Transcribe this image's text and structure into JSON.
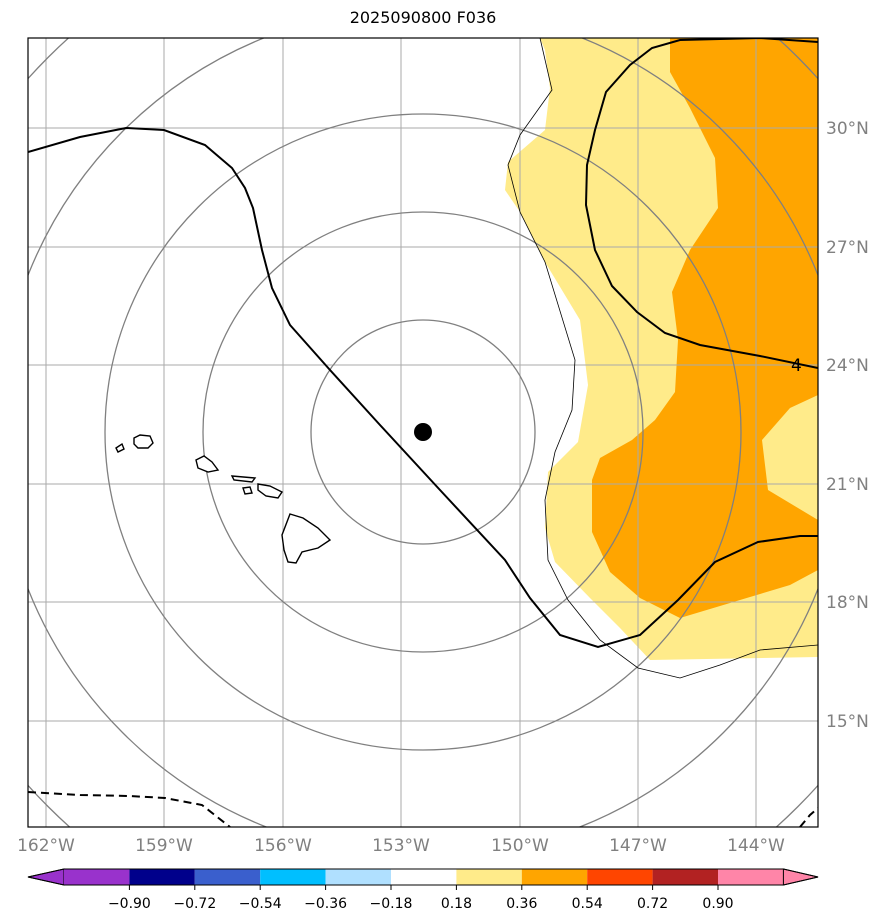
{
  "title": "2025090800 F036",
  "map": {
    "lon_ticks": [
      "162°W",
      "159°W",
      "156°W",
      "153°W",
      "150°W",
      "147°W",
      "144°W"
    ],
    "lat_ticks": [
      "30°N",
      "27°N",
      "24°N",
      "21°N",
      "18°N",
      "15°N"
    ],
    "contour_label": "4",
    "storm_center": {
      "lon": -152.5,
      "lat": 22.3
    },
    "colors": {
      "fill_low": "#ffeb8a",
      "fill_high": "#ffa500",
      "grid": "#aaaaaa",
      "rings": "#808080",
      "contour": "#000000"
    }
  },
  "colorbar": {
    "ticks": [
      "−0.90",
      "−0.72",
      "−0.54",
      "−0.36",
      "−0.18",
      "0.18",
      "0.36",
      "0.54",
      "0.72",
      "0.90"
    ],
    "colors": [
      "#9932cc",
      "#00008b",
      "#3a5fcd",
      "#00bfff",
      "#b0e0ff",
      "#ffffff",
      "#ffeb8a",
      "#ffa500",
      "#ff4500",
      "#b22222",
      "#ff85a8",
      "#ff85a8"
    ]
  }
}
